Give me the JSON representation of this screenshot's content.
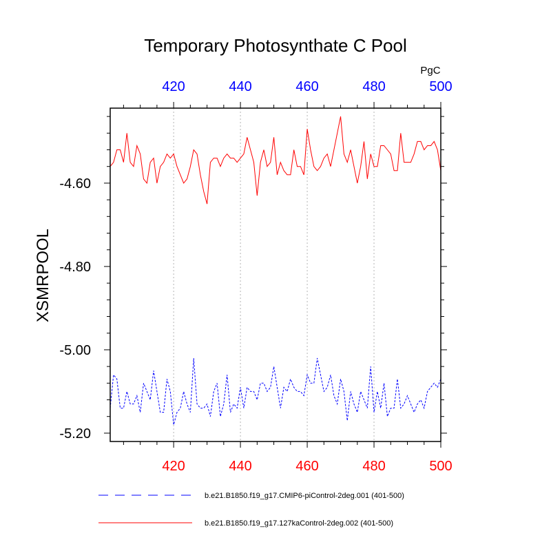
{
  "chart_data": {
    "type": "line",
    "title": "Temporary Photosynthate C Pool",
    "ylabel": "XSMRPOOL",
    "units": "PgC",
    "xlim": [
      401,
      500
    ],
    "ylim": [
      -5.22,
      -4.42
    ],
    "x_ticks": [
      420,
      440,
      460,
      480,
      500
    ],
    "x_tick_labels": [
      "420",
      "440",
      "460",
      "480",
      "500"
    ],
    "y_ticks": [
      -4.6,
      -4.8,
      -5.0,
      -5.2
    ],
    "y_tick_labels": [
      "-4.60",
      "-4.80",
      "-5.00",
      "-5.20"
    ],
    "top_axis_color": "#0000ff",
    "bottom_axis_color": "#ff0000",
    "gridlines_x": true,
    "x": [
      401,
      402,
      403,
      404,
      405,
      406,
      407,
      408,
      409,
      410,
      411,
      412,
      413,
      414,
      415,
      416,
      417,
      418,
      419,
      420,
      421,
      422,
      423,
      424,
      425,
      426,
      427,
      428,
      429,
      430,
      431,
      432,
      433,
      434,
      435,
      436,
      437,
      438,
      439,
      440,
      441,
      442,
      443,
      444,
      445,
      446,
      447,
      448,
      449,
      450,
      451,
      452,
      453,
      454,
      455,
      456,
      457,
      458,
      459,
      460,
      461,
      462,
      463,
      464,
      465,
      466,
      467,
      468,
      469,
      470,
      471,
      472,
      473,
      474,
      475,
      476,
      477,
      478,
      479,
      480,
      481,
      482,
      483,
      484,
      485,
      486,
      487,
      488,
      489,
      490,
      491,
      492,
      493,
      494,
      495,
      496,
      497,
      498,
      499,
      500
    ],
    "series": [
      {
        "name": "b.e21.B1850.f19_g17.CMIP6-piControl-2deg.001 (401-500)",
        "color": "#0000ff",
        "dash": "dashed",
        "values": [
          -5.14,
          -5.06,
          -5.07,
          -5.14,
          -5.14,
          -5.1,
          -5.13,
          -5.13,
          -5.11,
          -5.15,
          -5.08,
          -5.1,
          -5.12,
          -5.05,
          -5.1,
          -5.15,
          -5.15,
          -5.07,
          -5.1,
          -5.18,
          -5.15,
          -5.14,
          -5.1,
          -5.13,
          -5.15,
          -5.02,
          -5.13,
          -5.14,
          -5.14,
          -5.13,
          -5.16,
          -5.1,
          -5.08,
          -5.16,
          -5.13,
          -5.06,
          -5.15,
          -5.13,
          -5.14,
          -5.09,
          -5.14,
          -5.09,
          -5.1,
          -5.1,
          -5.12,
          -5.08,
          -5.08,
          -5.1,
          -5.09,
          -5.04,
          -5.09,
          -5.14,
          -5.09,
          -5.1,
          -5.07,
          -5.09,
          -5.1,
          -5.1,
          -5.11,
          -5.06,
          -5.08,
          -5.08,
          -5.02,
          -5.06,
          -5.1,
          -5.09,
          -5.06,
          -5.11,
          -5.13,
          -5.07,
          -5.1,
          -5.17,
          -5.1,
          -5.13,
          -5.15,
          -5.1,
          -5.12,
          -5.14,
          -5.04,
          -5.15,
          -5.1,
          -5.14,
          -5.08,
          -5.16,
          -5.14,
          -5.14,
          -5.07,
          -5.14,
          -5.13,
          -5.11,
          -5.13,
          -5.15,
          -5.13,
          -5.12,
          -5.14,
          -5.1,
          -5.09,
          -5.08,
          -5.09,
          -5.07
        ]
      },
      {
        "name": "b.e21.B1850.f19_g17.127kaControl-2deg.002 (401-500)",
        "color": "#ff0000",
        "dash": "solid",
        "values": [
          -4.56,
          -4.55,
          -4.52,
          -4.52,
          -4.55,
          -4.48,
          -4.55,
          -4.56,
          -4.51,
          -4.53,
          -4.59,
          -4.6,
          -4.55,
          -4.54,
          -4.6,
          -4.56,
          -4.55,
          -4.53,
          -4.54,
          -4.53,
          -4.56,
          -4.58,
          -4.6,
          -4.59,
          -4.56,
          -4.52,
          -4.53,
          -4.58,
          -4.62,
          -4.65,
          -4.55,
          -4.54,
          -4.54,
          -4.56,
          -4.54,
          -4.53,
          -4.54,
          -4.54,
          -4.55,
          -4.54,
          -4.53,
          -4.49,
          -4.52,
          -4.55,
          -4.63,
          -4.55,
          -4.52,
          -4.56,
          -4.55,
          -4.49,
          -4.58,
          -4.55,
          -4.57,
          -4.58,
          -4.58,
          -4.52,
          -4.56,
          -4.56,
          -4.58,
          -4.47,
          -4.52,
          -4.56,
          -4.57,
          -4.56,
          -4.54,
          -4.53,
          -4.56,
          -4.52,
          -4.48,
          -4.44,
          -4.53,
          -4.55,
          -4.52,
          -4.56,
          -4.6,
          -4.56,
          -4.5,
          -4.59,
          -4.53,
          -4.56,
          -4.56,
          -4.51,
          -4.51,
          -4.52,
          -4.53,
          -4.57,
          -4.57,
          -4.48,
          -4.55,
          -4.55,
          -4.55,
          -4.53,
          -4.5,
          -4.5,
          -4.52,
          -4.51,
          -4.51,
          -4.5,
          -4.52,
          -4.57
        ]
      }
    ],
    "legend_position": "bottom"
  }
}
